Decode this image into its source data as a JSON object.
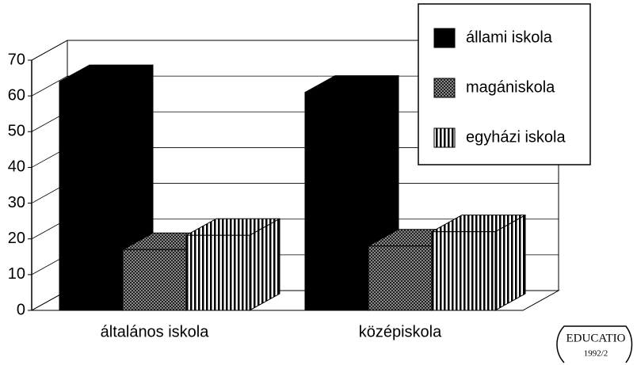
{
  "chart_data": {
    "type": "bar3d",
    "categories": [
      "általános iskola",
      "középiskola"
    ],
    "series": [
      {
        "name": "állami iskola",
        "color": "#000000",
        "pattern": "solid",
        "values": [
          64,
          61
        ]
      },
      {
        "name": "magániskola",
        "color": "#000000",
        "pattern": "crosshatch",
        "values": [
          17,
          18
        ]
      },
      {
        "name": "egyházi iskola",
        "color": "#000000",
        "pattern": "stripes",
        "values": [
          21,
          22
        ]
      }
    ],
    "ylim": [
      0,
      70
    ],
    "yticks": [
      0,
      10,
      20,
      30,
      40,
      50,
      60,
      70
    ],
    "grid": true,
    "legend": "top-right",
    "annotations": [
      "EDUCATIO",
      "1992/2"
    ]
  }
}
